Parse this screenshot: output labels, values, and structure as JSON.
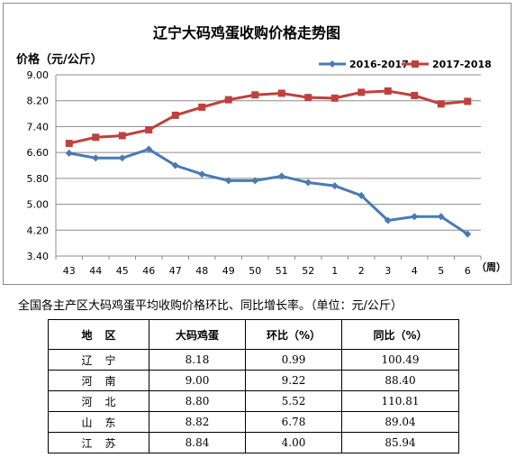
{
  "chart_data": {
    "type": "line",
    "title": "辽宁大码鸡蛋收购价格走势图",
    "ylabel": "价格（元/公斤）",
    "xlabel": "（周）",
    "ylim": [
      3.4,
      9.0
    ],
    "yticks": [
      "9.00",
      "8.20",
      "7.40",
      "6.60",
      "5.80",
      "5.00",
      "4.20",
      "3.40"
    ],
    "categories": [
      "43",
      "44",
      "45",
      "46",
      "47",
      "48",
      "49",
      "50",
      "51",
      "52",
      "1",
      "2",
      "3",
      "4",
      "5",
      "6"
    ],
    "grid": true,
    "legend_position": "top-right",
    "series": [
      {
        "name": "2016-2017",
        "color": "#4a7ab5",
        "marker": "diamond",
        "values": [
          6.58,
          6.43,
          6.43,
          6.7,
          6.2,
          5.93,
          5.73,
          5.73,
          5.87,
          5.67,
          5.57,
          5.27,
          4.5,
          4.62,
          4.62,
          4.08
        ]
      },
      {
        "name": "2017-2018",
        "color": "#c0403c",
        "marker": "square",
        "values": [
          6.88,
          7.07,
          7.12,
          7.3,
          7.75,
          8.0,
          8.23,
          8.38,
          8.43,
          8.3,
          8.28,
          8.46,
          8.5,
          8.36,
          8.1,
          8.18
        ]
      }
    ]
  },
  "caption": "全国各主产区大码鸡蛋平均收购价格环比、同比增长率。（单位：元/公斤）",
  "table": {
    "headers": [
      "地区",
      "大码鸡蛋",
      "环比（%）",
      "同比（%）"
    ],
    "rows": [
      [
        "辽宁",
        "8.18",
        "0.99",
        "100.49"
      ],
      [
        "河南",
        "9.00",
        "9.22",
        "88.40"
      ],
      [
        "河北",
        "8.80",
        "5.52",
        "110.81"
      ],
      [
        "山东",
        "8.82",
        "6.78",
        "89.04"
      ],
      [
        "江苏",
        "8.84",
        "4.00",
        "85.94"
      ]
    ]
  }
}
